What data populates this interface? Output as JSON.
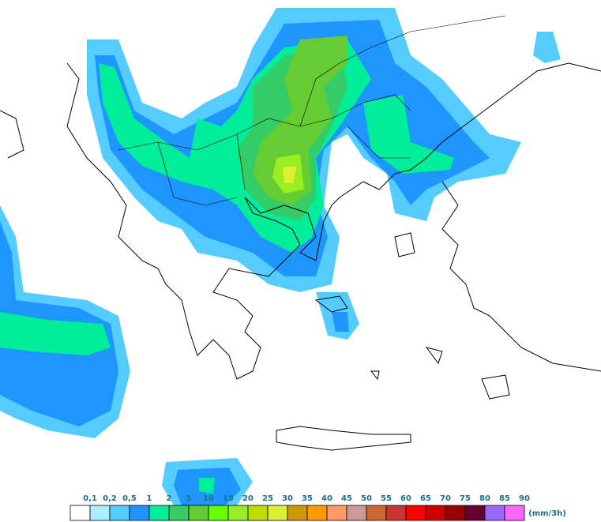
{
  "legend": {
    "unit": "(mm/3h)",
    "items": [
      {
        "label": "0,1",
        "color": "#ffffff"
      },
      {
        "label": "0,2",
        "color": "#aaeeff"
      },
      {
        "label": "0,5",
        "color": "#55ccff"
      },
      {
        "label": "1",
        "color": "#1e96ff"
      },
      {
        "label": "2",
        "color": "#00ee99"
      },
      {
        "label": "5",
        "color": "#33cc66"
      },
      {
        "label": "10",
        "color": "#66cc33"
      },
      {
        "label": "15",
        "color": "#66ff00"
      },
      {
        "label": "20",
        "color": "#99ee22"
      },
      {
        "label": "25",
        "color": "#bbdd00"
      },
      {
        "label": "30",
        "color": "#ddee33"
      },
      {
        "label": "35",
        "color": "#cc9900"
      },
      {
        "label": "40",
        "color": "#ff9900"
      },
      {
        "label": "45",
        "color": "#ff9966"
      },
      {
        "label": "50",
        "color": "#cc9999"
      },
      {
        "label": "55",
        "color": "#cc6633"
      },
      {
        "label": "60",
        "color": "#cc3333"
      },
      {
        "label": "65",
        "color": "#ff0000"
      },
      {
        "label": "70",
        "color": "#cc0000"
      },
      {
        "label": "75",
        "color": "#990000"
      },
      {
        "label": "80",
        "color": "#660033"
      },
      {
        "label": "85",
        "color": "#9966ff"
      },
      {
        "label": "90",
        "color": "#ff66ff"
      }
    ]
  }
}
